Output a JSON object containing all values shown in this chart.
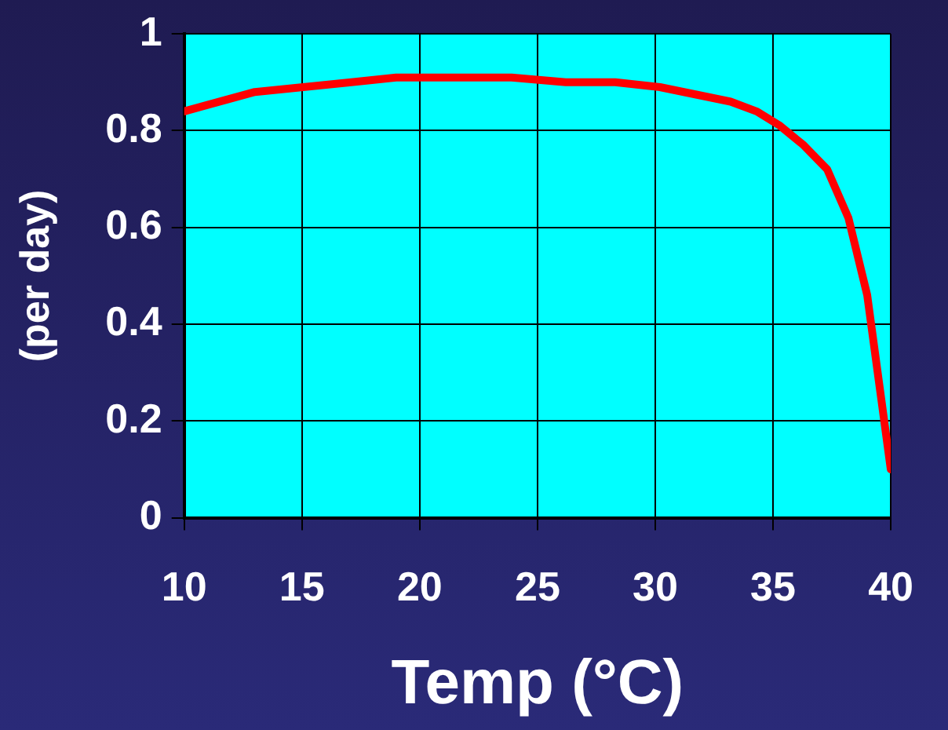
{
  "chart_data": {
    "type": "line",
    "xlabel": "Temp (°C)",
    "ylabel": "(per day)",
    "x": [
      10,
      13,
      17.1,
      19,
      23.9,
      26.2,
      28.3,
      30.2,
      33.2,
      34.3,
      35.3,
      36.3,
      37.3,
      38.2,
      39,
      40
    ],
    "series": [
      {
        "color": "#ff0000",
        "values": [
          0.84,
          0.88,
          0.9,
          0.91,
          0.91,
          0.9,
          0.9,
          0.89,
          0.86,
          0.84,
          0.81,
          0.77,
          0.72,
          0.62,
          0.46,
          0.1
        ]
      }
    ],
    "xlim": [
      10,
      40
    ],
    "xticks": [
      10,
      15,
      20,
      25,
      30,
      35,
      40
    ],
    "ylim": [
      0,
      1
    ],
    "yticks": [
      0,
      0.2,
      0.4,
      0.6,
      0.8,
      1
    ],
    "grid": true,
    "marker": "none",
    "line_style": "solid",
    "legend": false
  }
}
